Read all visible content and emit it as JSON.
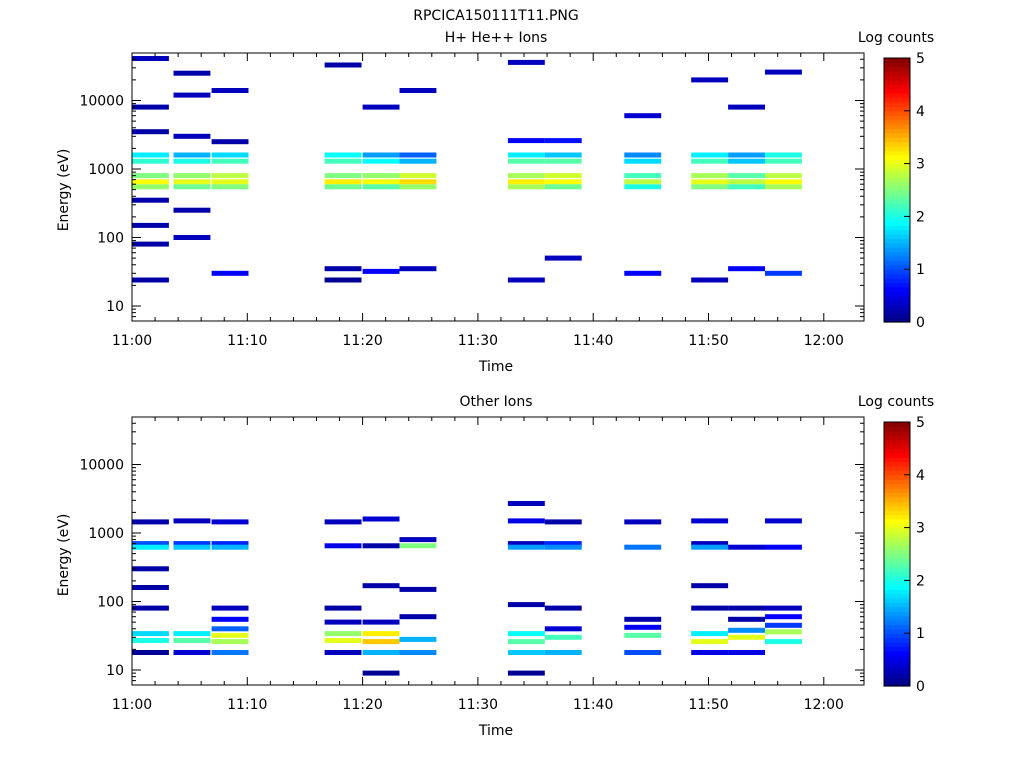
{
  "chart_data": [
    {
      "type": "heatmap",
      "title": "RPCICA150111T11.PNG",
      "subtitle": "H+ He++ Ions",
      "xlabel": "Time",
      "ylabel": "Energy (eV)",
      "x_ticks": [
        "11:00",
        "11:10",
        "11:20",
        "11:30",
        "11:40",
        "11:50",
        "12:00"
      ],
      "y_ticks": [
        "10",
        "100",
        "1000",
        "10000"
      ],
      "y_scale": "log",
      "colorbar_label": "Log counts",
      "colorbar_ticks": [
        "0",
        "1",
        "2",
        "3",
        "4",
        "5"
      ],
      "colorbar_range": [
        0,
        5
      ],
      "time_bins": [
        "11:00-11:03",
        "11:03-11:07",
        "11:07-11:10",
        "11:16-11:20",
        "11:20-11:23",
        "11:23-11:26",
        "11:32-11:35",
        "11:35-11:38",
        "11:42-11:45",
        "11:48-11:51",
        "11:51-11:55",
        "11:55-11:58"
      ],
      "cells": [
        {
          "bin": 0,
          "energy_ev": 41000,
          "level": 0.3
        },
        {
          "bin": 0,
          "energy_ev": 8000,
          "level": 0.2
        },
        {
          "bin": 0,
          "energy_ev": 3500,
          "level": 0.2
        },
        {
          "bin": 0,
          "energy_ev": 1600,
          "level": 1.8
        },
        {
          "bin": 0,
          "energy_ev": 1300,
          "level": 2.1
        },
        {
          "bin": 0,
          "energy_ev": 800,
          "level": 2.5
        },
        {
          "bin": 0,
          "energy_ev": 650,
          "level": 3.1
        },
        {
          "bin": 0,
          "energy_ev": 550,
          "level": 2.6
        },
        {
          "bin": 0,
          "energy_ev": 350,
          "level": 0.2
        },
        {
          "bin": 0,
          "energy_ev": 150,
          "level": 0.2
        },
        {
          "bin": 0,
          "energy_ev": 80,
          "level": 0.2
        },
        {
          "bin": 0,
          "energy_ev": 24,
          "level": 0.2
        },
        {
          "bin": 1,
          "energy_ev": 25000,
          "level": 0.2
        },
        {
          "bin": 1,
          "energy_ev": 12000,
          "level": 0.3
        },
        {
          "bin": 1,
          "energy_ev": 3000,
          "level": 0.3
        },
        {
          "bin": 1,
          "energy_ev": 1600,
          "level": 1.5
        },
        {
          "bin": 1,
          "energy_ev": 1300,
          "level": 2.0
        },
        {
          "bin": 1,
          "energy_ev": 800,
          "level": 2.6
        },
        {
          "bin": 1,
          "energy_ev": 650,
          "level": 3.0
        },
        {
          "bin": 1,
          "energy_ev": 550,
          "level": 2.4
        },
        {
          "bin": 1,
          "energy_ev": 250,
          "level": 0.2
        },
        {
          "bin": 1,
          "energy_ev": 100,
          "level": 0.3
        },
        {
          "bin": 2,
          "energy_ev": 14000,
          "level": 0.3
        },
        {
          "bin": 2,
          "energy_ev": 2500,
          "level": 0.2
        },
        {
          "bin": 2,
          "energy_ev": 1600,
          "level": 1.7
        },
        {
          "bin": 2,
          "energy_ev": 1300,
          "level": 2.2
        },
        {
          "bin": 2,
          "energy_ev": 800,
          "level": 2.8
        },
        {
          "bin": 2,
          "energy_ev": 650,
          "level": 3.0
        },
        {
          "bin": 2,
          "energy_ev": 550,
          "level": 2.5
        },
        {
          "bin": 2,
          "energy_ev": 30,
          "level": 0.6
        },
        {
          "bin": 3,
          "energy_ev": 33000,
          "level": 0.2
        },
        {
          "bin": 3,
          "energy_ev": 1600,
          "level": 1.9
        },
        {
          "bin": 3,
          "energy_ev": 1300,
          "level": 2.2
        },
        {
          "bin": 3,
          "energy_ev": 800,
          "level": 2.5
        },
        {
          "bin": 3,
          "energy_ev": 650,
          "level": 3.2
        },
        {
          "bin": 3,
          "energy_ev": 550,
          "level": 2.4
        },
        {
          "bin": 3,
          "energy_ev": 35,
          "level": 0.2
        },
        {
          "bin": 3,
          "energy_ev": 24,
          "level": 0.1
        },
        {
          "bin": 4,
          "energy_ev": 8000,
          "level": 0.3
        },
        {
          "bin": 4,
          "energy_ev": 1600,
          "level": 1.4
        },
        {
          "bin": 4,
          "energy_ev": 1300,
          "level": 1.9
        },
        {
          "bin": 4,
          "energy_ev": 800,
          "level": 2.6
        },
        {
          "bin": 4,
          "energy_ev": 650,
          "level": 3.1
        },
        {
          "bin": 4,
          "energy_ev": 550,
          "level": 2.3
        },
        {
          "bin": 4,
          "energy_ev": 32,
          "level": 0.6
        },
        {
          "bin": 5,
          "energy_ev": 14000,
          "level": 0.3
        },
        {
          "bin": 5,
          "energy_ev": 1600,
          "level": 1.1
        },
        {
          "bin": 5,
          "energy_ev": 1300,
          "level": 1.5
        },
        {
          "bin": 5,
          "energy_ev": 800,
          "level": 2.9
        },
        {
          "bin": 5,
          "energy_ev": 650,
          "level": 3.3
        },
        {
          "bin": 5,
          "energy_ev": 550,
          "level": 2.6
        },
        {
          "bin": 5,
          "energy_ev": 35,
          "level": 0.3
        },
        {
          "bin": 6,
          "energy_ev": 36000,
          "level": 0.3
        },
        {
          "bin": 6,
          "energy_ev": 2600,
          "level": 0.6
        },
        {
          "bin": 6,
          "energy_ev": 1600,
          "level": 1.8
        },
        {
          "bin": 6,
          "energy_ev": 1300,
          "level": 2.3
        },
        {
          "bin": 6,
          "energy_ev": 800,
          "level": 2.7
        },
        {
          "bin": 6,
          "energy_ev": 650,
          "level": 3.2
        },
        {
          "bin": 6,
          "energy_ev": 550,
          "level": 2.7
        },
        {
          "bin": 6,
          "energy_ev": 24,
          "level": 0.3
        },
        {
          "bin": 7,
          "energy_ev": 2600,
          "level": 0.7
        },
        {
          "bin": 7,
          "energy_ev": 1600,
          "level": 1.6
        },
        {
          "bin": 7,
          "energy_ev": 1300,
          "level": 2.3
        },
        {
          "bin": 7,
          "energy_ev": 800,
          "level": 2.9
        },
        {
          "bin": 7,
          "energy_ev": 650,
          "level": 3.1
        },
        {
          "bin": 7,
          "energy_ev": 550,
          "level": 2.4
        },
        {
          "bin": 7,
          "energy_ev": 50,
          "level": 0.3
        },
        {
          "bin": 8,
          "energy_ev": 6000,
          "level": 0.4
        },
        {
          "bin": 8,
          "energy_ev": 1600,
          "level": 1.3
        },
        {
          "bin": 8,
          "energy_ev": 1300,
          "level": 1.7
        },
        {
          "bin": 8,
          "energy_ev": 800,
          "level": 2.2
        },
        {
          "bin": 8,
          "energy_ev": 650,
          "level": 2.8
        },
        {
          "bin": 8,
          "energy_ev": 550,
          "level": 2.0
        },
        {
          "bin": 8,
          "energy_ev": 30,
          "level": 0.6
        },
        {
          "bin": 9,
          "energy_ev": 20000,
          "level": 0.3
        },
        {
          "bin": 9,
          "energy_ev": 1600,
          "level": 1.8
        },
        {
          "bin": 9,
          "energy_ev": 1300,
          "level": 2.2
        },
        {
          "bin": 9,
          "energy_ev": 800,
          "level": 2.7
        },
        {
          "bin": 9,
          "energy_ev": 650,
          "level": 3.0
        },
        {
          "bin": 9,
          "energy_ev": 550,
          "level": 2.5
        },
        {
          "bin": 9,
          "energy_ev": 24,
          "level": 0.3
        },
        {
          "bin": 10,
          "energy_ev": 8000,
          "level": 0.3
        },
        {
          "bin": 10,
          "energy_ev": 1600,
          "level": 1.4
        },
        {
          "bin": 10,
          "energy_ev": 1300,
          "level": 1.6
        },
        {
          "bin": 10,
          "energy_ev": 800,
          "level": 2.3
        },
        {
          "bin": 10,
          "energy_ev": 650,
          "level": 2.8
        },
        {
          "bin": 10,
          "energy_ev": 550,
          "level": 2.2
        },
        {
          "bin": 10,
          "energy_ev": 35,
          "level": 0.6
        },
        {
          "bin": 11,
          "energy_ev": 26000,
          "level": 0.3
        },
        {
          "bin": 11,
          "energy_ev": 1600,
          "level": 2.0
        },
        {
          "bin": 11,
          "energy_ev": 1300,
          "level": 2.2
        },
        {
          "bin": 11,
          "energy_ev": 800,
          "level": 2.8
        },
        {
          "bin": 11,
          "energy_ev": 650,
          "level": 3.1
        },
        {
          "bin": 11,
          "energy_ev": 550,
          "level": 2.7
        },
        {
          "bin": 11,
          "energy_ev": 30,
          "level": 0.9
        }
      ]
    },
    {
      "type": "heatmap",
      "subtitle": "Other Ions",
      "xlabel": "Time",
      "ylabel": "Energy (eV)",
      "x_ticks": [
        "11:00",
        "11:10",
        "11:20",
        "11:30",
        "11:40",
        "11:50",
        "12:00"
      ],
      "y_ticks": [
        "10",
        "100",
        "1000",
        "10000"
      ],
      "y_scale": "log",
      "colorbar_label": "Log counts",
      "colorbar_ticks": [
        "0",
        "1",
        "2",
        "3",
        "4",
        "5"
      ],
      "colorbar_range": [
        0,
        5
      ],
      "cells": [
        {
          "bin": 0,
          "energy_ev": 1450,
          "level": 0.2
        },
        {
          "bin": 0,
          "energy_ev": 700,
          "level": 1.0
        },
        {
          "bin": 0,
          "energy_ev": 620,
          "level": 1.8
        },
        {
          "bin": 0,
          "energy_ev": 300,
          "level": 0.2
        },
        {
          "bin": 0,
          "energy_ev": 160,
          "level": 0.2
        },
        {
          "bin": 0,
          "energy_ev": 80,
          "level": 0.2
        },
        {
          "bin": 0,
          "energy_ev": 34,
          "level": 1.7
        },
        {
          "bin": 0,
          "energy_ev": 27,
          "level": 2.0
        },
        {
          "bin": 0,
          "energy_ev": 18,
          "level": 0.1
        },
        {
          "bin": 1,
          "energy_ev": 1500,
          "level": 0.3
        },
        {
          "bin": 1,
          "energy_ev": 700,
          "level": 0.9
        },
        {
          "bin": 1,
          "energy_ev": 620,
          "level": 1.6
        },
        {
          "bin": 1,
          "energy_ev": 34,
          "level": 1.8
        },
        {
          "bin": 1,
          "energy_ev": 27,
          "level": 2.3
        },
        {
          "bin": 1,
          "energy_ev": 18,
          "level": 0.4
        },
        {
          "bin": 2,
          "energy_ev": 1450,
          "level": 0.4
        },
        {
          "bin": 2,
          "energy_ev": 700,
          "level": 0.8
        },
        {
          "bin": 2,
          "energy_ev": 620,
          "level": 1.5
        },
        {
          "bin": 2,
          "energy_ev": 80,
          "level": 0.3
        },
        {
          "bin": 2,
          "energy_ev": 55,
          "level": 0.6
        },
        {
          "bin": 2,
          "energy_ev": 40,
          "level": 1.1
        },
        {
          "bin": 2,
          "energy_ev": 32,
          "level": 3.0
        },
        {
          "bin": 2,
          "energy_ev": 26,
          "level": 2.7
        },
        {
          "bin": 2,
          "energy_ev": 18,
          "level": 1.2
        },
        {
          "bin": 3,
          "energy_ev": 1450,
          "level": 0.3
        },
        {
          "bin": 3,
          "energy_ev": 650,
          "level": 0.5
        },
        {
          "bin": 3,
          "energy_ev": 80,
          "level": 0.2
        },
        {
          "bin": 3,
          "energy_ev": 50,
          "level": 0.3
        },
        {
          "bin": 3,
          "energy_ev": 34,
          "level": 2.6
        },
        {
          "bin": 3,
          "energy_ev": 27,
          "level": 3.0
        },
        {
          "bin": 3,
          "energy_ev": 18,
          "level": 0.3
        },
        {
          "bin": 4,
          "energy_ev": 1600,
          "level": 0.4
        },
        {
          "bin": 4,
          "energy_ev": 650,
          "level": 0.2
        },
        {
          "bin": 4,
          "energy_ev": 170,
          "level": 0.2
        },
        {
          "bin": 4,
          "energy_ev": 50,
          "level": 0.3
        },
        {
          "bin": 4,
          "energy_ev": 34,
          "level": 3.2
        },
        {
          "bin": 4,
          "energy_ev": 26,
          "level": 3.4
        },
        {
          "bin": 4,
          "energy_ev": 18,
          "level": 1.5
        },
        {
          "bin": 4,
          "energy_ev": 9,
          "level": 0.1
        },
        {
          "bin": 5,
          "energy_ev": 800,
          "level": 0.3
        },
        {
          "bin": 5,
          "energy_ev": 650,
          "level": 2.5
        },
        {
          "bin": 5,
          "energy_ev": 150,
          "level": 0.2
        },
        {
          "bin": 5,
          "energy_ev": 60,
          "level": 0.2
        },
        {
          "bin": 5,
          "energy_ev": 28,
          "level": 1.5
        },
        {
          "bin": 5,
          "energy_ev": 18,
          "level": 1.3
        },
        {
          "bin": 6,
          "energy_ev": 2700,
          "level": 0.3
        },
        {
          "bin": 6,
          "energy_ev": 1500,
          "level": 0.5
        },
        {
          "bin": 6,
          "energy_ev": 700,
          "level": 0.3
        },
        {
          "bin": 6,
          "energy_ev": 620,
          "level": 1.4
        },
        {
          "bin": 6,
          "energy_ev": 90,
          "level": 0.2
        },
        {
          "bin": 6,
          "energy_ev": 34,
          "level": 1.9
        },
        {
          "bin": 6,
          "energy_ev": 26,
          "level": 2.3
        },
        {
          "bin": 6,
          "energy_ev": 18,
          "level": 1.6
        },
        {
          "bin": 6,
          "energy_ev": 9,
          "level": 0.1
        },
        {
          "bin": 7,
          "energy_ev": 1450,
          "level": 0.2
        },
        {
          "bin": 7,
          "energy_ev": 700,
          "level": 0.8
        },
        {
          "bin": 7,
          "energy_ev": 620,
          "level": 1.3
        },
        {
          "bin": 7,
          "energy_ev": 80,
          "level": 0.2
        },
        {
          "bin": 7,
          "energy_ev": 40,
          "level": 0.4
        },
        {
          "bin": 7,
          "energy_ev": 30,
          "level": 2.2
        },
        {
          "bin": 7,
          "energy_ev": 18,
          "level": 1.5
        },
        {
          "bin": 8,
          "energy_ev": 1450,
          "level": 0.3
        },
        {
          "bin": 8,
          "energy_ev": 620,
          "level": 1.2
        },
        {
          "bin": 8,
          "energy_ev": 55,
          "level": 0.2
        },
        {
          "bin": 8,
          "energy_ev": 42,
          "level": 0.6
        },
        {
          "bin": 8,
          "energy_ev": 32,
          "level": 2.3
        },
        {
          "bin": 8,
          "energy_ev": 18,
          "level": 1.0
        },
        {
          "bin": 9,
          "energy_ev": 1500,
          "level": 0.4
        },
        {
          "bin": 9,
          "energy_ev": 700,
          "level": 0.3
        },
        {
          "bin": 9,
          "energy_ev": 620,
          "level": 1.4
        },
        {
          "bin": 9,
          "energy_ev": 170,
          "level": 0.2
        },
        {
          "bin": 9,
          "energy_ev": 80,
          "level": 0.2
        },
        {
          "bin": 9,
          "energy_ev": 34,
          "level": 1.8
        },
        {
          "bin": 9,
          "energy_ev": 26,
          "level": 3.0
        },
        {
          "bin": 9,
          "energy_ev": 18,
          "level": 0.5
        },
        {
          "bin": 10,
          "energy_ev": 620,
          "level": 0.4
        },
        {
          "bin": 10,
          "energy_ev": 80,
          "level": 0.2
        },
        {
          "bin": 10,
          "energy_ev": 55,
          "level": 0.2
        },
        {
          "bin": 10,
          "energy_ev": 38,
          "level": 1.3
        },
        {
          "bin": 10,
          "energy_ev": 30,
          "level": 3.0
        },
        {
          "bin": 10,
          "energy_ev": 18,
          "level": 0.5
        },
        {
          "bin": 11,
          "energy_ev": 1500,
          "level": 0.4
        },
        {
          "bin": 11,
          "energy_ev": 620,
          "level": 0.6
        },
        {
          "bin": 11,
          "energy_ev": 80,
          "level": 0.3
        },
        {
          "bin": 11,
          "energy_ev": 60,
          "level": 0.6
        },
        {
          "bin": 11,
          "energy_ev": 45,
          "level": 0.9
        },
        {
          "bin": 11,
          "energy_ev": 36,
          "level": 2.7
        },
        {
          "bin": 11,
          "energy_ev": 26,
          "level": 2.0
        }
      ]
    }
  ]
}
